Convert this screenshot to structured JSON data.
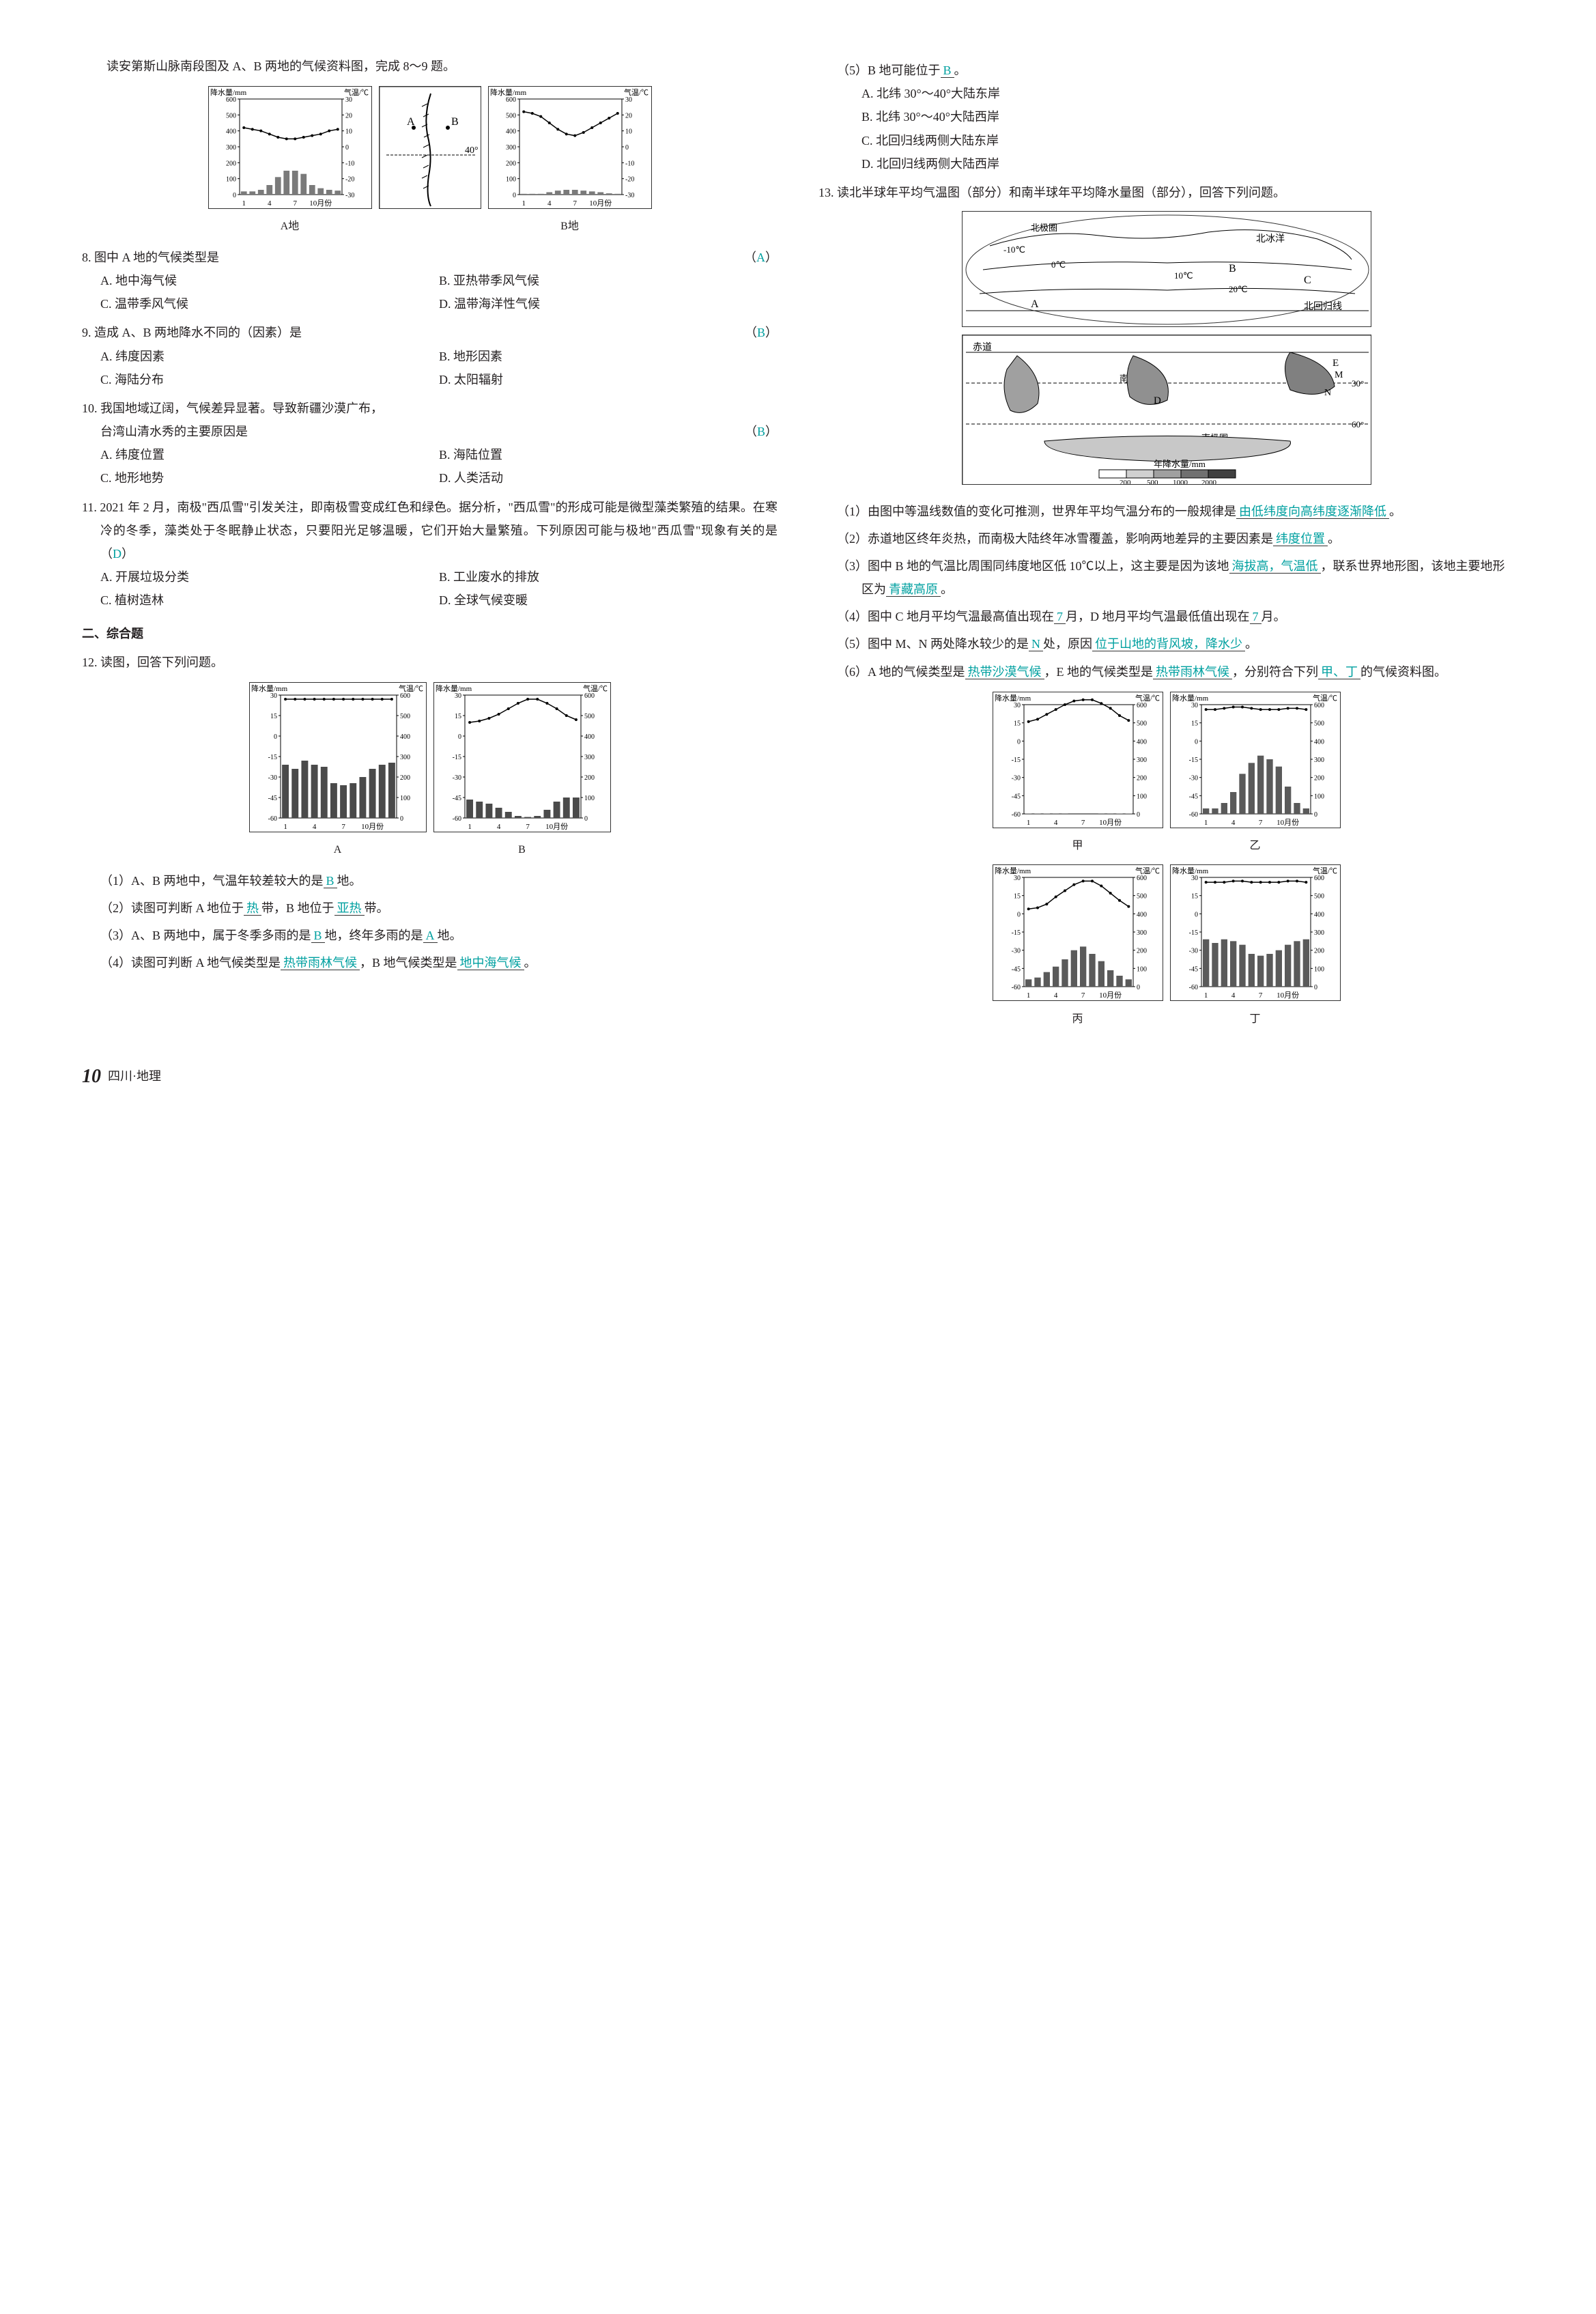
{
  "left": {
    "intro1": "读安第斯山脉南段图及 A、B 两地的气候资料图，完成 8～9 题。",
    "chartA": {
      "type": "climograph",
      "title": "A地",
      "precip_axis_label": "降水量/mm",
      "precip_ticks": [
        0,
        100,
        200,
        300,
        400,
        500,
        600
      ],
      "temp_axis_label": "气温/℃",
      "temp_ticks": [
        -30,
        -20,
        -10,
        0,
        10,
        20,
        30
      ],
      "x_ticks": [
        1,
        4,
        7,
        "10月份"
      ],
      "precip_values": [
        20,
        20,
        30,
        60,
        110,
        150,
        150,
        130,
        60,
        40,
        30,
        25
      ],
      "temp_values": [
        12,
        11,
        10,
        8,
        6,
        5,
        5,
        6,
        7,
        8,
        10,
        11
      ],
      "bar_color": "#7a7a7a",
      "line_color": "#000000",
      "grid_color": "#333333",
      "bg": "#ffffff"
    },
    "mapAndes": {
      "type": "map",
      "label_lat": "40°",
      "marker_A": "A",
      "marker_B": "B",
      "has_mountain_hatching": true
    },
    "chartB": {
      "type": "climograph",
      "title": "B地",
      "precip_axis_label": "降水量/mm",
      "precip_ticks": [
        0,
        100,
        200,
        300,
        400,
        500,
        600
      ],
      "temp_axis_label": "气温/℃",
      "temp_ticks": [
        -30,
        -20,
        -10,
        0,
        10,
        20,
        30
      ],
      "x_ticks": [
        1,
        4,
        7,
        "10月份"
      ],
      "precip_values": [
        5,
        5,
        5,
        15,
        25,
        30,
        30,
        25,
        20,
        15,
        8,
        5
      ],
      "temp_values": [
        22,
        21,
        19,
        15,
        11,
        8,
        7,
        9,
        12,
        15,
        18,
        21
      ],
      "bar_color": "#7a7a7a",
      "line_color": "#000000",
      "grid_color": "#333333",
      "bg": "#ffffff"
    },
    "q8": {
      "stem": "8. 图中 A 地的气候类型是",
      "paren_l": "（",
      "ans": "A",
      "paren_r": "）",
      "optA": "A. 地中海气候",
      "optB": "B. 亚热带季风气候",
      "optC": "C. 温带季风气候",
      "optD": "D. 温带海洋性气候"
    },
    "q9": {
      "stem": "9. 造成 A、B 两地降水不同的（因素）是",
      "paren_l": "（",
      "ans": "B",
      "paren_r": "）",
      "optA": "A. 纬度因素",
      "optB": "B. 地形因素",
      "optC": "C. 海陆分布",
      "optD": "D. 太阳辐射"
    },
    "q10": {
      "stem1": "10. 我国地域辽阔，气候差异显著。导致新疆沙漠广布，",
      "stem2": "台湾山清水秀的主要原因是",
      "paren_l": "（",
      "ans": "B",
      "paren_r": "）",
      "optA": "A. 纬度位置",
      "optB": "B. 海陆位置",
      "optC": "C. 地形地势",
      "optD": "D. 人类活动"
    },
    "q11": {
      "stem": "11. 2021 年 2 月，南极\"西瓜雪\"引发关注，即南极雪变成红色和绿色。据分析，\"西瓜雪\"的形成可能是微型藻类繁殖的结果。在寒冷的冬季，藻类处于冬眠静止状态，只要阳光足够温暖，它们开始大量繁殖。下列原因可能与极地\"西瓜雪\"现象有关的是",
      "paren_l": "（",
      "ans": "D",
      "paren_r": "）",
      "optA": "A. 开展垃圾分类",
      "optB": "B. 工业废水的排放",
      "optC": "C. 植树造林",
      "optD": "D. 全球气候变暖"
    },
    "section2": "二、综合题",
    "q12": {
      "stem": "12. 读图，回答下列问题。",
      "chartA": {
        "type": "climograph",
        "title": "A",
        "temp_label": "气温/℃",
        "precip_label": "降水量/mm",
        "temp_ticks": [
          -60,
          -45,
          -30,
          -15,
          0,
          15,
          30
        ],
        "precip_ticks": [
          0,
          100,
          200,
          300,
          400,
          500,
          600
        ],
        "x_ticks": [
          1,
          4,
          7,
          "10月份"
        ],
        "temp_values": [
          27,
          27,
          27,
          27,
          27,
          27,
          27,
          27,
          27,
          27,
          27,
          27
        ],
        "precip_values": [
          260,
          240,
          280,
          260,
          250,
          170,
          160,
          170,
          200,
          240,
          260,
          270
        ],
        "bar_color": "#4a4a4a",
        "line_color": "#000"
      },
      "chartB": {
        "type": "climograph",
        "title": "B",
        "temp_label": "气温/℃",
        "precip_label": "降水量/mm",
        "temp_ticks": [
          -60,
          -45,
          -30,
          -15,
          0,
          15,
          30
        ],
        "precip_ticks": [
          0,
          100,
          200,
          300,
          400,
          500,
          600
        ],
        "x_ticks": [
          1,
          4,
          7,
          "10月份"
        ],
        "temp_values": [
          10,
          11,
          13,
          16,
          20,
          24,
          27,
          27,
          24,
          20,
          15,
          12
        ],
        "precip_values": [
          90,
          80,
          70,
          50,
          30,
          10,
          5,
          10,
          40,
          80,
          100,
          100
        ],
        "bar_color": "#4a4a4a",
        "line_color": "#000"
      },
      "s1": {
        "pre": "（1）A、B 两地中，气温年较差较大的是",
        "ans": "B",
        "post": "地。"
      },
      "s2": {
        "pre": "（2）读图可判断 A 地位于",
        "ans1": "热",
        "mid": "带，B 地位于",
        "ans2": "亚热",
        "post": "带。"
      },
      "s3": {
        "pre": "（3）A、B 两地中，属于冬季多雨的是",
        "ans1": "B",
        "mid": "地，终年多雨的是",
        "ans2": "A",
        "post": "地。"
      },
      "s4": {
        "pre": "（4）读图可判断 A 地气候类型是",
        "ans1": "热带雨林气候",
        "mid": "，B 地气候类型是",
        "ans2": "地中海气候",
        "post": "。"
      }
    }
  },
  "right": {
    "s5": {
      "pre": "（5）B 地可能位于",
      "ans": "B",
      "post": "。",
      "optA": "A. 北纬 30°～40°大陆东岸",
      "optB": "B. 北纬 30°～40°大陆西岸",
      "optC": "C. 北回归线两侧大陆东岸",
      "optD": "D. 北回归线两侧大陆西岸"
    },
    "q13": {
      "stem": "13. 读北半球年平均气温图（部分）和南半球年平均降水量图（部分），回答下列问题。",
      "mapN": {
        "type": "map",
        "labels": [
          "北极圈",
          "北冰洋",
          "北回归线",
          "-10℃",
          "0℃",
          "10℃",
          "20℃"
        ],
        "markers": [
          "A",
          "B",
          "C"
        ]
      },
      "mapS": {
        "type": "map",
        "labels": [
          "赤道",
          "南回归线",
          "南极圈",
          "30°",
          "60°",
          "D",
          "E",
          "M",
          "N"
        ],
        "legend_title": "年降水量/mm",
        "legend_ticks": [
          200,
          500,
          1000,
          2000
        ],
        "fill_shades": [
          "#ffffff",
          "#d0d0d0",
          "#a0a0a0",
          "#707070",
          "#404040"
        ]
      },
      "s1": {
        "pre": "（1）由图中等温线数值的变化可推测，世界年平均气温分布的一般规律是",
        "ans": "由低纬度向高纬度逐渐降低",
        "post": "。"
      },
      "s2": {
        "pre": "（2）赤道地区终年炎热，而南极大陆终年冰雪覆盖，影响两地差异的主要因素是",
        "ans": "纬度位置",
        "post": "。"
      },
      "s3": {
        "pre": "（3）图中 B 地的气温比周围同纬度地区低 10℃以上，这主要是因为该地",
        "ans1": "海拔高，气温低",
        "mid": "，联系世界地形图，该地主要地形区为",
        "ans2": "青藏高原",
        "post": "。"
      },
      "s4": {
        "pre": "（4）图中 C 地月平均气温最高值出现在",
        "ans1": "7",
        "mid1": "月，D 地月平均气温最低值出现在",
        "ans2": "7",
        "mid2": "月。"
      },
      "s5": {
        "pre": "（5）图中 M、N 两处降水较少的是",
        "ans1": "N",
        "mid": "处，原因",
        "ans2": "位于山地的背风坡，降水少",
        "post": "。"
      },
      "s6": {
        "pre": "（6）A 地的气候类型是",
        "ans1": "热带沙漠气候",
        "mid1": "，E 地的气候类型是",
        "ans2": "热带雨林气候",
        "mid2": "，分别符合下列",
        "ans3": "甲、丁",
        "post": "的气候资料图。"
      },
      "charts": {
        "labels": [
          "甲",
          "乙",
          "丙",
          "丁"
        ],
        "temp_label": "气温/℃",
        "precip_label": "降水量/mm",
        "temp_ticks": [
          -60,
          -45,
          -30,
          -15,
          0,
          15,
          30
        ],
        "precip_ticks": [
          0,
          100,
          200,
          300,
          400,
          500,
          600
        ],
        "x_ticks": [
          1,
          4,
          7,
          "10月份"
        ],
        "jia": {
          "temp": [
            16,
            18,
            22,
            26,
            30,
            33,
            34,
            34,
            31,
            27,
            21,
            17
          ],
          "precip": [
            2,
            2,
            2,
            1,
            1,
            0,
            0,
            0,
            1,
            1,
            2,
            2
          ]
        },
        "yi": {
          "temp": [
            26,
            26,
            27,
            28,
            28,
            27,
            26,
            26,
            26,
            27,
            27,
            26
          ],
          "precip": [
            30,
            30,
            60,
            120,
            220,
            280,
            320,
            300,
            260,
            150,
            60,
            30
          ]
        },
        "bing": {
          "temp": [
            4,
            5,
            8,
            14,
            19,
            24,
            27,
            27,
            23,
            17,
            11,
            6
          ],
          "precip": [
            40,
            50,
            80,
            110,
            150,
            200,
            220,
            180,
            140,
            90,
            60,
            40
          ]
        },
        "ding": {
          "temp": [
            26,
            26,
            26,
            27,
            27,
            26,
            26,
            26,
            26,
            27,
            27,
            26
          ],
          "precip": [
            260,
            240,
            260,
            250,
            230,
            180,
            170,
            180,
            200,
            230,
            250,
            260
          ]
        },
        "bar_color": "#5a5a5a",
        "line_color": "#000"
      }
    }
  },
  "footer": {
    "pageNumber": "10",
    "subject": "四川·地理"
  }
}
